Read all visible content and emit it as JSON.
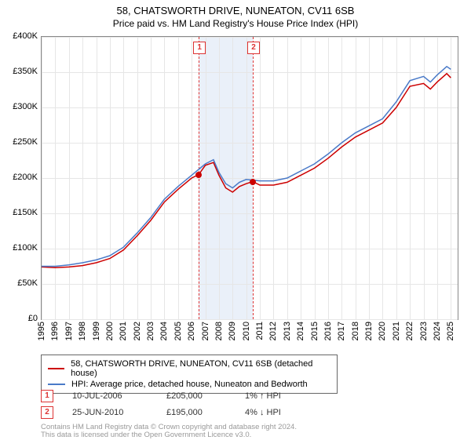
{
  "title": "58, CHATSWORTH DRIVE, NUNEATON, CV11 6SB",
  "subtitle": "Price paid vs. HM Land Registry's House Price Index (HPI)",
  "chart": {
    "type": "line",
    "x_range": [
      1995,
      2025.5
    ],
    "y_range": [
      0,
      400000
    ],
    "y_ticks": [
      0,
      50000,
      100000,
      150000,
      200000,
      250000,
      300000,
      350000,
      400000
    ],
    "y_tick_labels": [
      "£0",
      "£50K",
      "£100K",
      "£150K",
      "£200K",
      "£250K",
      "£300K",
      "£350K",
      "£400K"
    ],
    "x_ticks": [
      1995,
      1996,
      1997,
      1998,
      1999,
      2000,
      2001,
      2002,
      2003,
      2004,
      2005,
      2006,
      2007,
      2008,
      2009,
      2010,
      2011,
      2012,
      2013,
      2014,
      2015,
      2016,
      2017,
      2018,
      2019,
      2020,
      2021,
      2022,
      2023,
      2024,
      2025
    ],
    "grid_color": "#e6e6e6",
    "background_color": "#ffffff",
    "plot_border_color": "#888888",
    "series": [
      {
        "id": "price_paid",
        "label": "58, CHATSWORTH DRIVE, NUNEATON, CV11 6SB (detached house)",
        "color": "#cc0000",
        "line_width": 1.5,
        "data": [
          [
            1995,
            74000
          ],
          [
            1996,
            73000
          ],
          [
            1997,
            74000
          ],
          [
            1998,
            76000
          ],
          [
            1999,
            80000
          ],
          [
            2000,
            86000
          ],
          [
            2001,
            98000
          ],
          [
            2002,
            118000
          ],
          [
            2003,
            140000
          ],
          [
            2004,
            166000
          ],
          [
            2005,
            184000
          ],
          [
            2006,
            200000
          ],
          [
            2006.52,
            205000
          ],
          [
            2007,
            218000
          ],
          [
            2007.6,
            222000
          ],
          [
            2008,
            204000
          ],
          [
            2008.5,
            186000
          ],
          [
            2009,
            180000
          ],
          [
            2009.5,
            188000
          ],
          [
            2010,
            192000
          ],
          [
            2010.48,
            195000
          ],
          [
            2011,
            190000
          ],
          [
            2012,
            190000
          ],
          [
            2013,
            194000
          ],
          [
            2014,
            204000
          ],
          [
            2015,
            214000
          ],
          [
            2016,
            228000
          ],
          [
            2017,
            244000
          ],
          [
            2018,
            258000
          ],
          [
            2019,
            268000
          ],
          [
            2020,
            278000
          ],
          [
            2021,
            300000
          ],
          [
            2022,
            330000
          ],
          [
            2023,
            334000
          ],
          [
            2023.5,
            326000
          ],
          [
            2024,
            336000
          ],
          [
            2024.7,
            348000
          ],
          [
            2025,
            342000
          ]
        ]
      },
      {
        "id": "hpi",
        "label": "HPI: Average price, detached house, Nuneaton and Bedworth",
        "color": "#4a7ac8",
        "line_width": 1.5,
        "data": [
          [
            1995,
            75000
          ],
          [
            1996,
            75000
          ],
          [
            1997,
            77000
          ],
          [
            1998,
            80000
          ],
          [
            1999,
            84000
          ],
          [
            2000,
            90000
          ],
          [
            2001,
            102000
          ],
          [
            2002,
            122000
          ],
          [
            2003,
            144000
          ],
          [
            2004,
            170000
          ],
          [
            2005,
            188000
          ],
          [
            2006,
            204000
          ],
          [
            2007,
            220000
          ],
          [
            2007.6,
            226000
          ],
          [
            2008,
            208000
          ],
          [
            2008.5,
            192000
          ],
          [
            2009,
            186000
          ],
          [
            2009.5,
            194000
          ],
          [
            2010,
            198000
          ],
          [
            2011,
            196000
          ],
          [
            2012,
            196000
          ],
          [
            2013,
            200000
          ],
          [
            2014,
            210000
          ],
          [
            2015,
            220000
          ],
          [
            2016,
            234000
          ],
          [
            2017,
            250000
          ],
          [
            2018,
            264000
          ],
          [
            2019,
            274000
          ],
          [
            2020,
            284000
          ],
          [
            2021,
            308000
          ],
          [
            2022,
            338000
          ],
          [
            2023,
            344000
          ],
          [
            2023.5,
            336000
          ],
          [
            2024,
            346000
          ],
          [
            2024.7,
            358000
          ],
          [
            2025,
            354000
          ]
        ]
      }
    ],
    "highlight_band": {
      "x_start": 2006.52,
      "x_end": 2010.48,
      "color": "#eaf0f9"
    },
    "markers": [
      {
        "id": "1",
        "x": 2006.52,
        "y": 205000,
        "dash_color": "#d33",
        "point_color": "#cc0000"
      },
      {
        "id": "2",
        "x": 2010.48,
        "y": 195000,
        "dash_color": "#d33",
        "point_color": "#cc0000"
      }
    ]
  },
  "legend": {
    "border_color": "#666",
    "rows": [
      {
        "color": "#cc0000",
        "label": "58, CHATSWORTH DRIVE, NUNEATON, CV11 6SB (detached house)"
      },
      {
        "color": "#4a7ac8",
        "label": "HPI: Average price, detached house, Nuneaton and Bedworth"
      }
    ]
  },
  "sales": [
    {
      "id": "1",
      "date": "10-JUL-2006",
      "price": "£205,000",
      "delta": "1% ↑ HPI"
    },
    {
      "id": "2",
      "date": "25-JUN-2010",
      "price": "£195,000",
      "delta": "4% ↓ HPI"
    }
  ],
  "footer_line1": "Contains HM Land Registry data © Crown copyright and database right 2024.",
  "footer_line2": "This data is licensed under the Open Government Licence v3.0."
}
